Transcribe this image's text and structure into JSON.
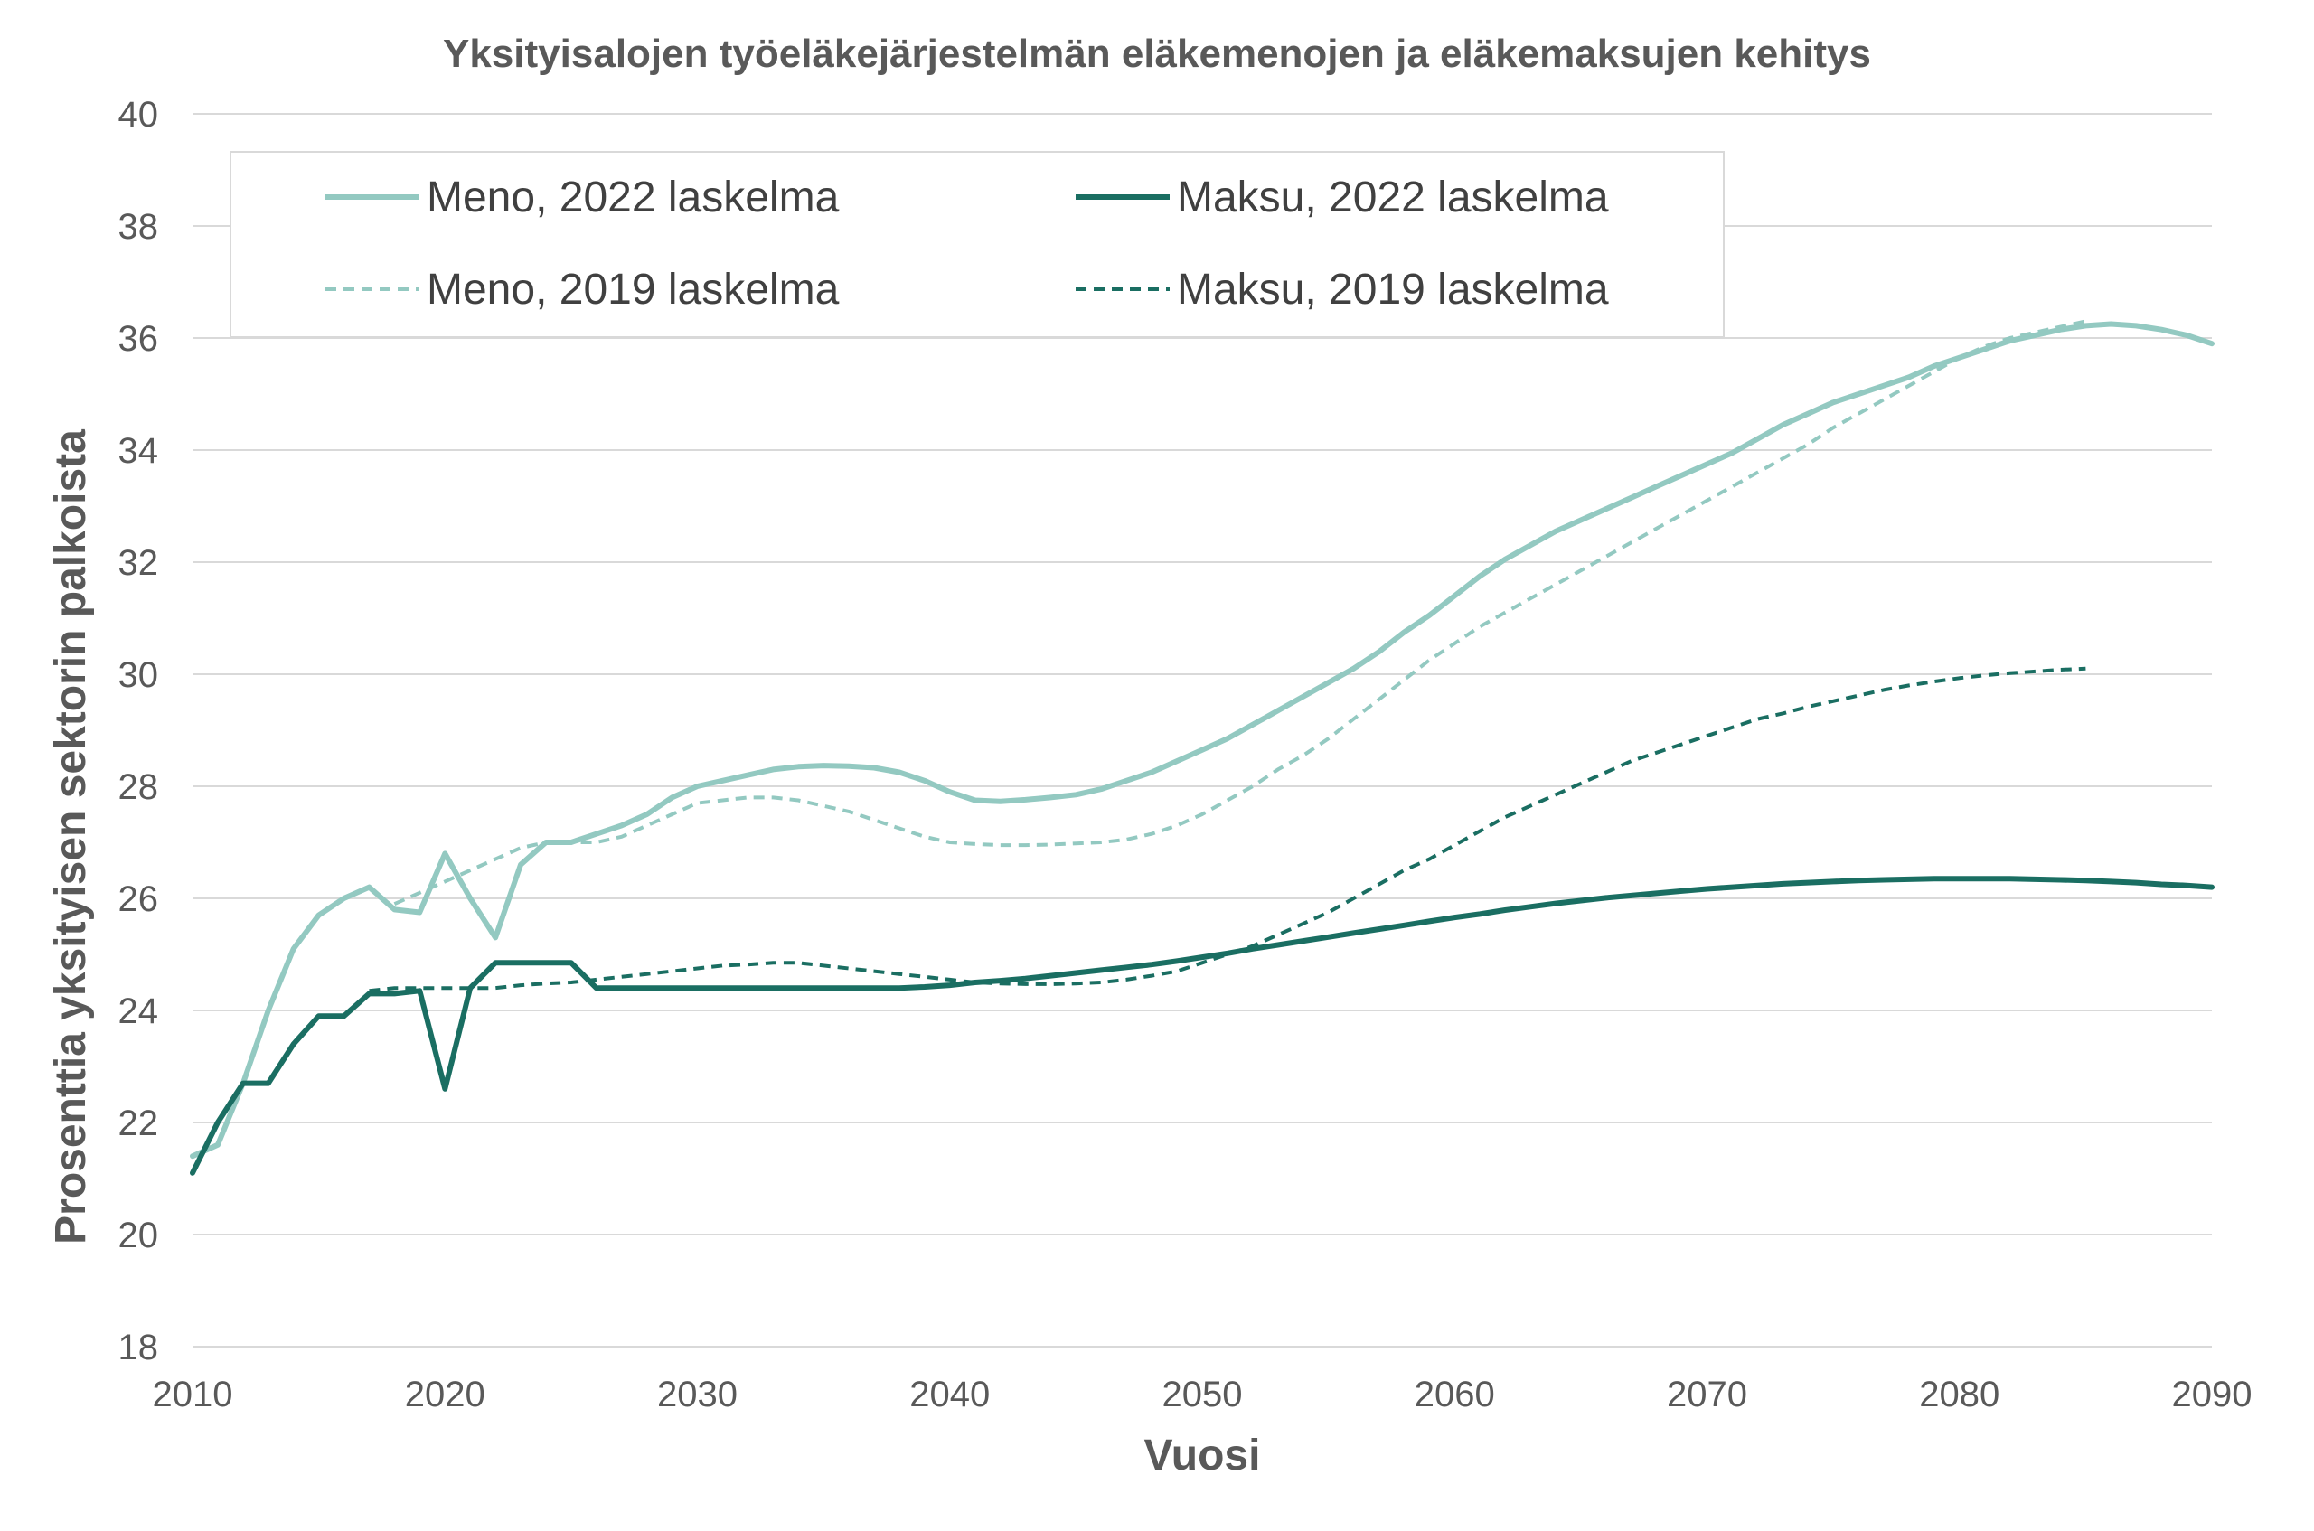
{
  "chart_data": {
    "type": "line",
    "title": "Yksityisalojen työeläkejärjestelmän eläkemenojen ja eläkemaksujen kehitys",
    "xlabel": "Vuosi",
    "ylabel": "Prosenttia yksityisen sektorin palkoista",
    "xlim": [
      2010,
      2090
    ],
    "ylim": [
      18,
      40
    ],
    "x_ticks": [
      2010,
      2020,
      2030,
      2040,
      2050,
      2060,
      2070,
      2080,
      2090
    ],
    "y_ticks": [
      18,
      20,
      22,
      24,
      26,
      28,
      30,
      32,
      34,
      36,
      38,
      40
    ],
    "grid": true,
    "legend_position": "top-left",
    "series": [
      {
        "name": "Meno, 2022 laskelma",
        "color": "#93c9c1",
        "style": "solid",
        "x": [
          2010,
          2011,
          2012,
          2013,
          2014,
          2015,
          2016,
          2017,
          2018,
          2019,
          2020,
          2021,
          2022,
          2023,
          2024,
          2025,
          2026,
          2027,
          2028,
          2029,
          2030,
          2031,
          2032,
          2033,
          2034,
          2035,
          2036,
          2037,
          2038,
          2039,
          2040,
          2041,
          2042,
          2043,
          2044,
          2045,
          2046,
          2047,
          2048,
          2049,
          2050,
          2051,
          2052,
          2053,
          2054,
          2055,
          2056,
          2057,
          2058,
          2059,
          2060,
          2061,
          2062,
          2063,
          2064,
          2065,
          2066,
          2067,
          2068,
          2069,
          2070,
          2071,
          2072,
          2073,
          2074,
          2075,
          2076,
          2077,
          2078,
          2079,
          2080,
          2081,
          2082,
          2083,
          2084,
          2085,
          2086,
          2087,
          2088,
          2089,
          2090
        ],
        "y": [
          21.4,
          21.6,
          22.7,
          24.0,
          25.1,
          25.7,
          26.0,
          26.2,
          25.8,
          25.75,
          26.8,
          26.0,
          25.3,
          26.6,
          27.0,
          27.0,
          27.15,
          27.3,
          27.5,
          27.8,
          28.0,
          28.1,
          28.2,
          28.3,
          28.35,
          28.37,
          28.36,
          28.33,
          28.25,
          28.1,
          27.9,
          27.75,
          27.73,
          27.76,
          27.8,
          27.85,
          27.95,
          28.1,
          28.25,
          28.45,
          28.65,
          28.85,
          29.1,
          29.35,
          29.6,
          29.85,
          30.1,
          30.4,
          30.75,
          31.05,
          31.4,
          31.75,
          32.05,
          32.3,
          32.55,
          32.75,
          32.95,
          33.15,
          33.35,
          33.55,
          33.75,
          33.95,
          34.2,
          34.45,
          34.65,
          34.85,
          35.0,
          35.15,
          35.3,
          35.5,
          35.65,
          35.8,
          35.95,
          36.05,
          36.15,
          36.22,
          36.25,
          36.22,
          36.15,
          36.05,
          35.9
        ]
      },
      {
        "name": "Maksu, 2022 laskelma",
        "color": "#1a6e62",
        "style": "solid",
        "x": [
          2010,
          2011,
          2012,
          2013,
          2014,
          2015,
          2016,
          2017,
          2018,
          2019,
          2020,
          2021,
          2022,
          2023,
          2024,
          2025,
          2026,
          2027,
          2028,
          2029,
          2030,
          2031,
          2032,
          2033,
          2034,
          2035,
          2036,
          2037,
          2038,
          2039,
          2040,
          2041,
          2042,
          2043,
          2044,
          2045,
          2046,
          2047,
          2048,
          2049,
          2050,
          2051,
          2052,
          2053,
          2054,
          2055,
          2056,
          2057,
          2058,
          2059,
          2060,
          2061,
          2062,
          2063,
          2064,
          2065,
          2066,
          2067,
          2068,
          2069,
          2070,
          2071,
          2072,
          2073,
          2074,
          2075,
          2076,
          2077,
          2078,
          2079,
          2080,
          2081,
          2082,
          2083,
          2084,
          2085,
          2086,
          2087,
          2088,
          2089,
          2090
        ],
        "y": [
          21.1,
          22.0,
          22.7,
          22.7,
          23.4,
          23.9,
          23.9,
          24.3,
          24.3,
          24.35,
          22.6,
          24.4,
          24.85,
          24.85,
          24.85,
          24.85,
          24.4,
          24.4,
          24.4,
          24.4,
          24.4,
          24.4,
          24.4,
          24.4,
          24.4,
          24.4,
          24.4,
          24.4,
          24.4,
          24.42,
          24.45,
          24.5,
          24.53,
          24.57,
          24.62,
          24.67,
          24.72,
          24.77,
          24.82,
          24.88,
          24.95,
          25.02,
          25.1,
          25.17,
          25.24,
          25.31,
          25.38,
          25.45,
          25.52,
          25.59,
          25.66,
          25.72,
          25.79,
          25.85,
          25.91,
          25.96,
          26.01,
          26.05,
          26.09,
          26.13,
          26.17,
          26.2,
          26.23,
          26.26,
          26.28,
          26.3,
          26.32,
          26.33,
          26.34,
          26.35,
          26.35,
          26.35,
          26.35,
          26.34,
          26.33,
          26.32,
          26.3,
          26.28,
          26.25,
          26.23,
          26.2
        ]
      },
      {
        "name": "Meno, 2019 laskelma",
        "color": "#93c9c1",
        "style": "dashed",
        "x": [
          2018,
          2019,
          2020,
          2021,
          2022,
          2023,
          2024,
          2025,
          2026,
          2027,
          2028,
          2029,
          2030,
          2031,
          2032,
          2033,
          2034,
          2035,
          2036,
          2037,
          2038,
          2039,
          2040,
          2041,
          2042,
          2043,
          2044,
          2045,
          2046,
          2047,
          2048,
          2049,
          2050,
          2051,
          2052,
          2053,
          2054,
          2055,
          2056,
          2057,
          2058,
          2059,
          2060,
          2061,
          2062,
          2063,
          2064,
          2065,
          2066,
          2067,
          2068,
          2069,
          2070,
          2071,
          2072,
          2073,
          2074,
          2075,
          2076,
          2077,
          2078,
          2079,
          2080,
          2081,
          2082,
          2083,
          2084,
          2085
        ],
        "y": [
          25.9,
          26.1,
          26.3,
          26.5,
          26.7,
          26.9,
          27.0,
          27.0,
          27.0,
          27.1,
          27.3,
          27.5,
          27.7,
          27.75,
          27.8,
          27.8,
          27.75,
          27.65,
          27.55,
          27.4,
          27.25,
          27.1,
          27.0,
          26.97,
          26.95,
          26.95,
          26.96,
          26.98,
          27.0,
          27.05,
          27.15,
          27.3,
          27.5,
          27.75,
          28.0,
          28.3,
          28.55,
          28.85,
          29.2,
          29.55,
          29.9,
          30.25,
          30.55,
          30.85,
          31.1,
          31.35,
          31.6,
          31.85,
          32.1,
          32.35,
          32.6,
          32.85,
          33.1,
          33.35,
          33.6,
          33.85,
          34.1,
          34.4,
          34.65,
          34.9,
          35.15,
          35.4,
          35.65,
          35.85,
          36.0,
          36.1,
          36.2,
          36.3
        ]
      },
      {
        "name": "Maksu, 2019 laskelma",
        "color": "#1a6e62",
        "style": "dashed",
        "x": [
          2017,
          2018,
          2019,
          2020,
          2021,
          2022,
          2023,
          2024,
          2025,
          2026,
          2027,
          2028,
          2029,
          2030,
          2031,
          2032,
          2033,
          2034,
          2035,
          2036,
          2037,
          2038,
          2039,
          2040,
          2041,
          2042,
          2043,
          2044,
          2045,
          2046,
          2047,
          2048,
          2049,
          2050,
          2051,
          2052,
          2053,
          2054,
          2055,
          2056,
          2057,
          2058,
          2059,
          2060,
          2061,
          2062,
          2063,
          2064,
          2065,
          2066,
          2067,
          2068,
          2069,
          2070,
          2071,
          2072,
          2073,
          2074,
          2075,
          2076,
          2077,
          2078,
          2079,
          2080,
          2081,
          2082,
          2083,
          2084,
          2085
        ],
        "y": [
          24.35,
          24.4,
          24.4,
          24.4,
          24.4,
          24.4,
          24.45,
          24.48,
          24.5,
          24.55,
          24.6,
          24.65,
          24.7,
          24.75,
          24.8,
          24.82,
          24.85,
          24.85,
          24.8,
          24.75,
          24.7,
          24.65,
          24.6,
          24.55,
          24.5,
          24.48,
          24.47,
          24.47,
          24.48,
          24.5,
          24.55,
          24.62,
          24.7,
          24.85,
          25.0,
          25.15,
          25.35,
          25.55,
          25.75,
          26.0,
          26.25,
          26.5,
          26.7,
          26.95,
          27.2,
          27.45,
          27.65,
          27.85,
          28.05,
          28.25,
          28.45,
          28.6,
          28.75,
          28.9,
          29.05,
          29.2,
          29.3,
          29.42,
          29.52,
          29.62,
          29.72,
          29.8,
          29.87,
          29.93,
          29.98,
          30.02,
          30.05,
          30.08,
          30.1
        ]
      }
    ]
  }
}
